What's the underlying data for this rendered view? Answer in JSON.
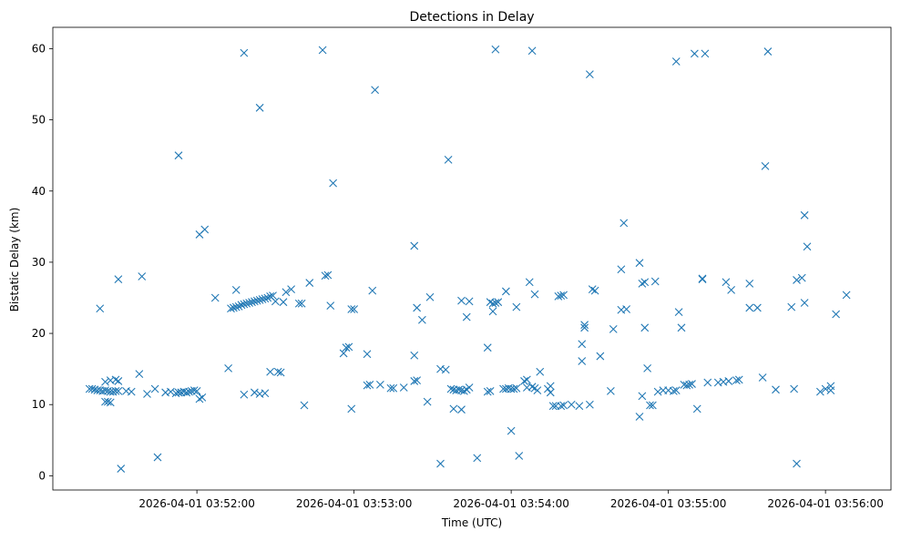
{
  "chart_data": {
    "type": "scatter",
    "title": "Detections in Delay",
    "xlabel": "Time (UTC)",
    "ylabel": "Bistatic Delay (km)",
    "marker": "x",
    "marker_color": "#1f77b4",
    "grid": false,
    "x_unit": "seconds",
    "x_ticks": [
      {
        "value": 60,
        "label": "2026-04-01 03:52:00"
      },
      {
        "value": 120,
        "label": "2026-04-01 03:53:00"
      },
      {
        "value": 180,
        "label": "2026-04-01 03:54:00"
      },
      {
        "value": 240,
        "label": "2026-04-01 03:55:00"
      },
      {
        "value": 300,
        "label": "2026-04-01 03:56:00"
      }
    ],
    "y_ticks": [
      0,
      10,
      20,
      30,
      40,
      50,
      60
    ],
    "xlim": [
      5,
      325
    ],
    "ylim": [
      -2,
      63
    ],
    "points": [
      [
        19,
        12.2
      ],
      [
        20,
        12.2
      ],
      [
        21,
        12.1
      ],
      [
        22,
        12.0
      ],
      [
        23,
        12.0
      ],
      [
        24,
        11.9
      ],
      [
        25,
        12.0
      ],
      [
        26,
        11.9
      ],
      [
        27,
        11.8
      ],
      [
        28,
        11.8
      ],
      [
        29,
        11.9
      ],
      [
        30,
        11.9
      ],
      [
        25,
        13.2
      ],
      [
        27,
        13.4
      ],
      [
        29,
        13.5
      ],
      [
        30,
        13.3
      ],
      [
        25,
        10.4
      ],
      [
        26,
        10.4
      ],
      [
        27,
        10.3
      ],
      [
        23,
        23.5
      ],
      [
        30,
        27.6
      ],
      [
        31,
        1.0
      ],
      [
        33,
        11.9
      ],
      [
        35,
        11.8
      ],
      [
        38,
        14.3
      ],
      [
        39,
        28.0
      ],
      [
        41,
        11.5
      ],
      [
        44,
        12.2
      ],
      [
        45,
        2.6
      ],
      [
        48,
        11.7
      ],
      [
        50,
        11.8
      ],
      [
        52,
        11.6
      ],
      [
        53,
        11.7
      ],
      [
        54,
        11.7
      ],
      [
        55,
        11.8
      ],
      [
        56,
        11.7
      ],
      [
        57,
        11.8
      ],
      [
        58,
        11.9
      ],
      [
        59,
        12.0
      ],
      [
        60,
        11.9
      ],
      [
        61,
        10.8
      ],
      [
        62,
        11.0
      ],
      [
        53,
        45.0
      ],
      [
        61,
        33.9
      ],
      [
        63,
        34.6
      ],
      [
        67,
        25.0
      ],
      [
        72,
        15.1
      ],
      [
        73,
        23.5
      ],
      [
        74,
        23.6
      ],
      [
        75,
        23.7
      ],
      [
        76,
        23.8
      ],
      [
        77,
        24.0
      ],
      [
        78,
        24.1
      ],
      [
        79,
        24.2
      ],
      [
        80,
        24.3
      ],
      [
        81,
        24.4
      ],
      [
        82,
        24.5
      ],
      [
        83,
        24.6
      ],
      [
        84,
        24.7
      ],
      [
        85,
        24.8
      ],
      [
        86,
        24.9
      ],
      [
        87,
        25.0
      ],
      [
        88,
        25.2
      ],
      [
        89,
        25.3
      ],
      [
        75,
        26.1
      ],
      [
        78,
        59.4
      ],
      [
        78,
        11.4
      ],
      [
        82,
        11.7
      ],
      [
        84,
        51.7
      ],
      [
        84,
        11.5
      ],
      [
        86,
        11.6
      ],
      [
        88,
        14.6
      ],
      [
        91,
        14.6
      ],
      [
        92,
        14.5
      ],
      [
        90,
        24.5
      ],
      [
        93,
        24.4
      ],
      [
        94,
        25.8
      ],
      [
        96,
        26.2
      ],
      [
        99,
        24.2
      ],
      [
        100,
        24.2
      ],
      [
        101,
        9.9
      ],
      [
        103,
        27.1
      ],
      [
        108,
        59.8
      ],
      [
        109,
        28.1
      ],
      [
        110,
        28.2
      ],
      [
        111,
        23.9
      ],
      [
        112,
        41.1
      ],
      [
        116,
        17.2
      ],
      [
        117,
        18.0
      ],
      [
        118,
        18.1
      ],
      [
        119,
        9.4
      ],
      [
        119,
        23.4
      ],
      [
        120,
        23.4
      ],
      [
        125,
        17.1
      ],
      [
        125,
        12.7
      ],
      [
        126,
        12.8
      ],
      [
        127,
        26.0
      ],
      [
        128,
        54.2
      ],
      [
        130,
        12.8
      ],
      [
        134,
        12.3
      ],
      [
        135,
        12.3
      ],
      [
        139,
        12.4
      ],
      [
        143,
        32.3
      ],
      [
        143,
        16.9
      ],
      [
        143,
        13.3
      ],
      [
        144,
        13.4
      ],
      [
        144,
        23.6
      ],
      [
        146,
        21.9
      ],
      [
        148,
        10.4
      ],
      [
        149,
        25.1
      ],
      [
        153,
        1.7
      ],
      [
        153,
        15.0
      ],
      [
        155,
        14.9
      ],
      [
        156,
        44.4
      ],
      [
        157,
        12.2
      ],
      [
        158,
        12.1
      ],
      [
        158,
        9.4
      ],
      [
        159,
        12.0
      ],
      [
        160,
        12.1
      ],
      [
        161,
        9.3
      ],
      [
        161,
        12.0
      ],
      [
        162,
        11.9
      ],
      [
        163,
        12.1
      ],
      [
        161,
        24.6
      ],
      [
        163,
        22.3
      ],
      [
        164,
        24.5
      ],
      [
        164,
        12.4
      ],
      [
        167,
        2.5
      ],
      [
        171,
        18.0
      ],
      [
        171,
        11.8
      ],
      [
        172,
        11.9
      ],
      [
        172,
        24.4
      ],
      [
        173,
        23.1
      ],
      [
        173,
        24.2
      ],
      [
        174,
        24.3
      ],
      [
        175,
        24.4
      ],
      [
        174,
        59.9
      ],
      [
        177,
        12.2
      ],
      [
        178,
        12.2
      ],
      [
        178,
        25.9
      ],
      [
        179,
        12.3
      ],
      [
        180,
        12.2
      ],
      [
        180,
        6.3
      ],
      [
        181,
        12.2
      ],
      [
        182,
        12.3
      ],
      [
        182,
        23.7
      ],
      [
        183,
        2.8
      ],
      [
        185,
        13.3
      ],
      [
        186,
        13.5
      ],
      [
        186,
        12.4
      ],
      [
        187,
        27.2
      ],
      [
        188,
        12.5
      ],
      [
        188,
        59.7
      ],
      [
        189,
        12.3
      ],
      [
        189,
        25.5
      ],
      [
        190,
        12.0
      ],
      [
        191,
        14.6
      ],
      [
        194,
        12.2
      ],
      [
        195,
        12.6
      ],
      [
        195,
        11.7
      ],
      [
        196,
        9.8
      ],
      [
        197,
        9.8
      ],
      [
        198,
        25.2
      ],
      [
        199,
        25.3
      ],
      [
        199,
        9.8
      ],
      [
        200,
        25.4
      ],
      [
        200,
        9.9
      ],
      [
        203,
        10.0
      ],
      [
        206,
        9.8
      ],
      [
        207,
        18.5
      ],
      [
        207,
        16.1
      ],
      [
        208,
        21.2
      ],
      [
        208,
        20.8
      ],
      [
        210,
        10.0
      ],
      [
        210,
        56.4
      ],
      [
        211,
        26.2
      ],
      [
        212,
        26.0
      ],
      [
        214,
        16.8
      ],
      [
        218,
        11.9
      ],
      [
        219,
        20.6
      ],
      [
        222,
        23.3
      ],
      [
        222,
        29.0
      ],
      [
        223,
        35.5
      ],
      [
        224,
        23.4
      ],
      [
        229,
        29.9
      ],
      [
        229,
        8.3
      ],
      [
        230,
        11.2
      ],
      [
        230,
        27.0
      ],
      [
        231,
        27.2
      ],
      [
        231,
        20.8
      ],
      [
        232,
        15.1
      ],
      [
        233,
        9.9
      ],
      [
        234,
        9.9
      ],
      [
        235,
        27.3
      ],
      [
        236,
        11.8
      ],
      [
        238,
        12.0
      ],
      [
        240,
        12.0
      ],
      [
        242,
        11.9
      ],
      [
        243,
        12.0
      ],
      [
        244,
        23.0
      ],
      [
        245,
        20.8
      ],
      [
        243,
        58.2
      ],
      [
        246,
        12.8
      ],
      [
        247,
        12.7
      ],
      [
        248,
        12.8
      ],
      [
        249,
        12.9
      ],
      [
        250,
        59.3
      ],
      [
        251,
        9.4
      ],
      [
        253,
        27.7
      ],
      [
        253,
        27.6
      ],
      [
        254,
        59.3
      ],
      [
        255,
        13.1
      ],
      [
        259,
        13.1
      ],
      [
        261,
        13.2
      ],
      [
        262,
        27.2
      ],
      [
        263,
        13.3
      ],
      [
        264,
        26.1
      ],
      [
        266,
        13.4
      ],
      [
        267,
        13.5
      ],
      [
        271,
        27.0
      ],
      [
        271,
        23.6
      ],
      [
        274,
        23.6
      ],
      [
        276,
        13.8
      ],
      [
        277,
        43.5
      ],
      [
        278,
        59.6
      ],
      [
        281,
        12.1
      ],
      [
        287,
        23.7
      ],
      [
        288,
        12.2
      ],
      [
        289,
        1.7
      ],
      [
        289,
        27.5
      ],
      [
        291,
        27.8
      ],
      [
        292,
        36.6
      ],
      [
        292,
        24.3
      ],
      [
        293,
        32.2
      ],
      [
        298,
        11.8
      ],
      [
        300,
        12.2
      ],
      [
        302,
        12.6
      ],
      [
        302,
        12.0
      ],
      [
        304,
        22.7
      ],
      [
        308,
        25.4
      ]
    ]
  }
}
